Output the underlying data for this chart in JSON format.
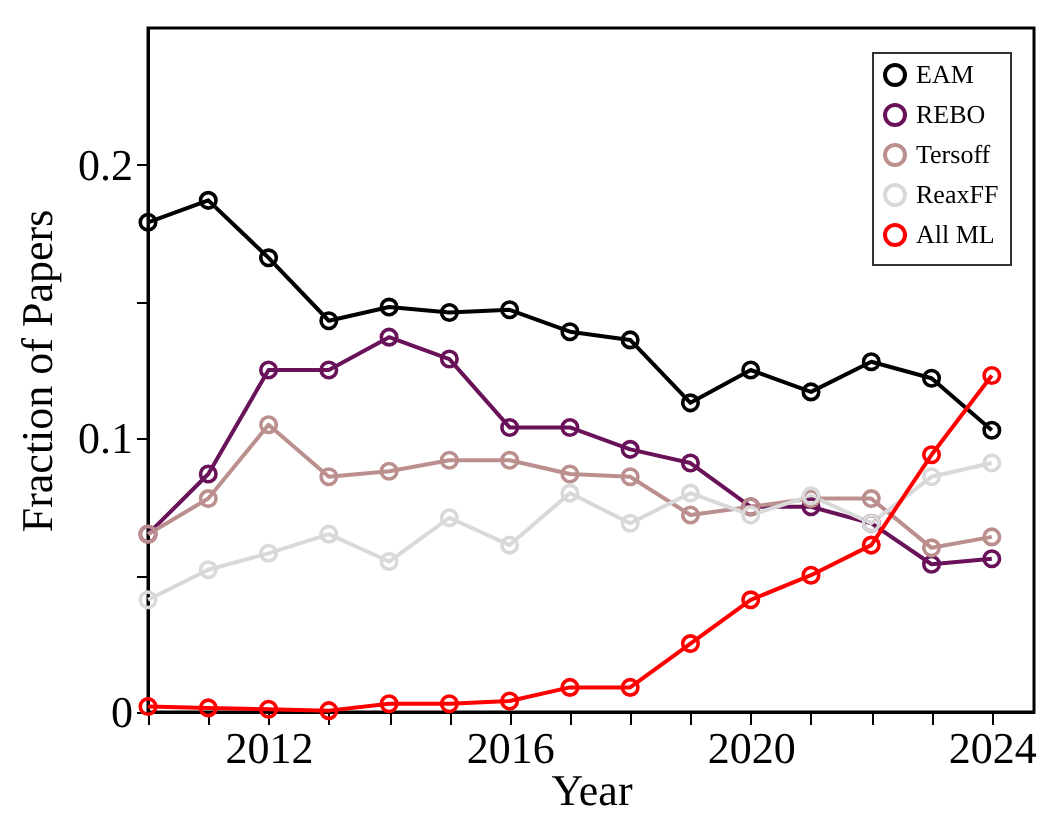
{
  "chart_data": {
    "type": "line",
    "xlabel": "Year",
    "ylabel": "Fraction of Papers",
    "x": [
      2010,
      2011,
      2012,
      2013,
      2014,
      2015,
      2016,
      2017,
      2018,
      2019,
      2020,
      2021,
      2022,
      2023,
      2024
    ],
    "xlim": [
      2010,
      2024.7
    ],
    "xticks": [
      {
        "value": 2010,
        "label": null
      },
      {
        "value": 2011,
        "label": null
      },
      2012,
      {
        "value": 2013,
        "label": null
      },
      {
        "value": 2014,
        "label": null
      },
      {
        "value": 2015,
        "label": null
      },
      2016,
      {
        "value": 2017,
        "label": null
      },
      {
        "value": 2018,
        "label": null
      },
      {
        "value": 2019,
        "label": null
      },
      2020,
      {
        "value": 2021,
        "label": null
      },
      {
        "value": 2022,
        "label": null
      },
      {
        "value": 2023,
        "label": null
      },
      2024
    ],
    "ylim": [
      0,
      0.25
    ],
    "yticks": [
      0,
      {
        "value": 0.05,
        "label": null
      },
      0.1,
      {
        "value": 0.15,
        "label": null
      },
      0.2
    ],
    "grid": false,
    "legend": "top right",
    "marker": "circle",
    "line_style": "solid",
    "series": [
      {
        "name": "EAM",
        "color": "#000000",
        "values": [
          0.179,
          0.187,
          0.166,
          0.143,
          0.148,
          0.146,
          0.147,
          0.139,
          0.136,
          0.113,
          0.125,
          0.117,
          0.128,
          0.122,
          0.103
        ]
      },
      {
        "name": "REBO",
        "color": "#6a1259",
        "values": [
          0.065,
          0.087,
          0.125,
          0.125,
          0.137,
          0.129,
          0.104,
          0.104,
          0.096,
          0.091,
          0.075,
          0.075,
          0.069,
          0.054,
          0.056
        ]
      },
      {
        "name": "Tersoff",
        "color": "#bc8f8f",
        "values": [
          0.065,
          0.078,
          0.105,
          0.086,
          0.088,
          0.092,
          0.092,
          0.087,
          0.086,
          0.072,
          0.075,
          0.078,
          0.078,
          0.06,
          0.064
        ]
      },
      {
        "name": "ReaxFF",
        "color": "#d9d9d9",
        "values": [
          0.041,
          0.052,
          0.058,
          0.065,
          0.055,
          0.071,
          0.061,
          0.08,
          0.069,
          0.08,
          0.072,
          0.079,
          0.069,
          0.086,
          0.091
        ]
      },
      {
        "name": "All ML",
        "color": "#ff0000",
        "values": [
          0.002,
          0.0015,
          0.001,
          0.0005,
          0.003,
          0.003,
          0.004,
          0.009,
          0.009,
          0.025,
          0.041,
          0.05,
          0.061,
          0.094,
          0.123
        ]
      }
    ]
  }
}
